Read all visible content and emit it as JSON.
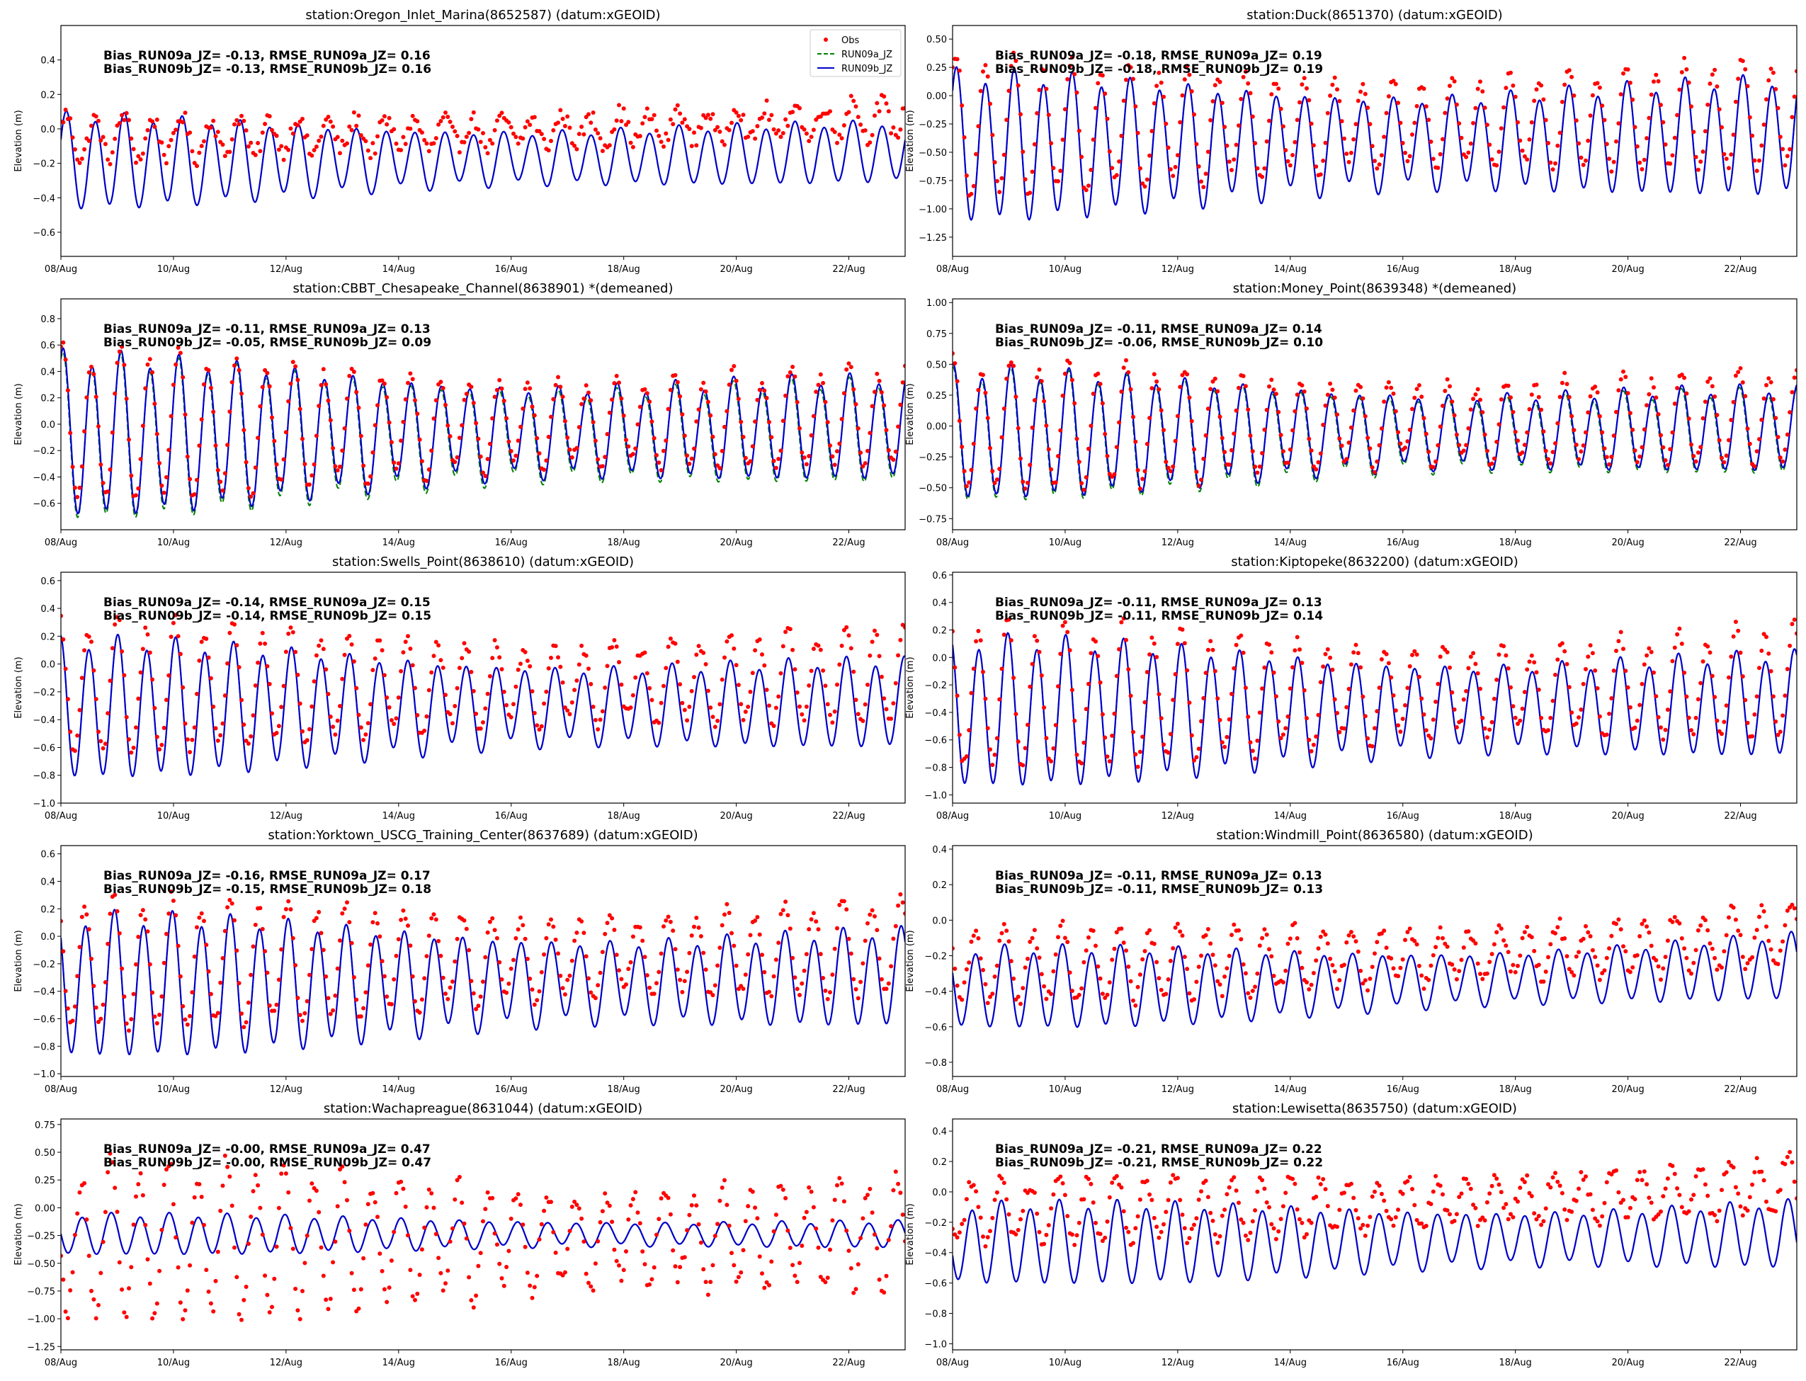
{
  "x_ticks": [
    "08/Aug",
    "10/Aug",
    "12/Aug",
    "14/Aug",
    "16/Aug",
    "18/Aug",
    "20/Aug",
    "22/Aug"
  ],
  "x_range_days": [
    0,
    15
  ],
  "y_label": "Elevation (m)",
  "legend": [
    {
      "key": "obs",
      "label": "Obs",
      "color": "#ff0000"
    },
    {
      "key": "run09a",
      "label": "RUN09a_JZ",
      "color": "#008000"
    },
    {
      "key": "run09b",
      "label": "RUN09b_JZ",
      "color": "#0000cc"
    }
  ],
  "chart_data": [
    {
      "type": "line",
      "title": "station:Oregon_Inlet_Marina(8652587) (datum:xGEOID)",
      "ylim": [
        -0.74,
        0.6
      ],
      "yticks": [
        -0.6,
        -0.4,
        -0.2,
        0.0,
        0.2,
        0.4
      ],
      "ytick_labels": [
        "−0.6",
        "−0.4",
        "−0.2",
        "0.0",
        "0.2",
        "0.4"
      ],
      "stats": [
        "Bias_RUN09a_JZ= -0.13, RMSE_RUN09a_JZ=  0.16",
        "Bias_RUN09b_JZ= -0.13, RMSE_RUN09b_JZ=  0.16"
      ],
      "model": {
        "mean": -0.19,
        "amp_start": 0.26,
        "amp_end": 0.16,
        "trend": 0.06,
        "offset_a": 0.0
      },
      "obs": {
        "mean": -0.05,
        "amp_start": 0.12,
        "amp_end": 0.1,
        "trend": 0.12,
        "noise": 0.05
      },
      "show_legend": true
    },
    {
      "type": "line",
      "title": "station:Duck(8651370) (datum:xGEOID)",
      "ylim": [
        -1.42,
        0.62
      ],
      "yticks": [
        -1.25,
        -1.0,
        -0.75,
        -0.5,
        -0.25,
        0.0,
        0.25,
        0.5
      ],
      "ytick_labels": [
        "−1.25",
        "−1.00",
        "−0.75",
        "−0.50",
        "−0.25",
        "0.00",
        "0.25",
        "0.50"
      ],
      "stats": [
        "Bias_RUN09a_JZ= -0.18, RMSE_RUN09a_JZ=  0.19",
        "Bias_RUN09b_JZ= -0.18, RMSE_RUN09b_JZ=  0.19"
      ],
      "model": {
        "mean": -0.45,
        "amp_start": 0.62,
        "amp_end": 0.48,
        "trend": 0.1,
        "offset_a": 0.0
      },
      "obs": {
        "mean": -0.28,
        "amp_start": 0.58,
        "amp_end": 0.44,
        "trend": 0.12,
        "noise": 0.04
      },
      "show_legend": false
    },
    {
      "type": "line",
      "title": "station:CBBT_Chesapeake_Channel(8638901) *(demeaned)",
      "ylim": [
        -0.8,
        0.95
      ],
      "yticks": [
        -0.6,
        -0.4,
        -0.2,
        0.0,
        0.2,
        0.4,
        0.6,
        0.8
      ],
      "ytick_labels": [
        "−0.6",
        "−0.4",
        "−0.2",
        "0.0",
        "0.2",
        "0.4",
        "0.6",
        "0.8"
      ],
      "stats": [
        "Bias_RUN09a_JZ= -0.11, RMSE_RUN09a_JZ=  0.13",
        "Bias_RUN09b_JZ= -0.05, RMSE_RUN09b_JZ=  0.09"
      ],
      "model": {
        "mean": -0.08,
        "amp_start": 0.58,
        "amp_end": 0.36,
        "trend": 0.06,
        "offset_a": -0.06
      },
      "obs": {
        "mean": -0.02,
        "amp_start": 0.55,
        "amp_end": 0.34,
        "trend": 0.08,
        "noise": 0.04
      },
      "show_legend": false
    },
    {
      "type": "line",
      "title": "station:Money_Point(8639348) *(demeaned)",
      "ylim": [
        -0.84,
        1.03
      ],
      "yticks": [
        -0.75,
        -0.5,
        -0.25,
        0.0,
        0.25,
        0.5,
        0.75,
        1.0
      ],
      "ytick_labels": [
        "−0.75",
        "−0.50",
        "−0.25",
        "0.00",
        "0.25",
        "0.50",
        "0.75",
        "1.00"
      ],
      "stats": [
        "Bias_RUN09a_JZ= -0.11, RMSE_RUN09a_JZ=  0.14",
        "Bias_RUN09b_JZ= -0.06, RMSE_RUN09b_JZ=  0.10"
      ],
      "model": {
        "mean": -0.06,
        "amp_start": 0.5,
        "amp_end": 0.32,
        "trend": 0.04,
        "offset_a": -0.05
      },
      "obs": {
        "mean": 0.0,
        "amp_start": 0.5,
        "amp_end": 0.36,
        "trend": 0.08,
        "noise": 0.04
      },
      "show_legend": false
    },
    {
      "type": "line",
      "title": "station:Swells_Point(8638610) (datum:xGEOID)",
      "ylim": [
        -1.0,
        0.66
      ],
      "yticks": [
        -1.0,
        -0.8,
        -0.6,
        -0.4,
        -0.2,
        0.0,
        0.2,
        0.4,
        0.6
      ],
      "ytick_labels": [
        "−1.0",
        "−0.8",
        "−0.6",
        "−0.4",
        "−0.2",
        "0.0",
        "0.2",
        "0.4",
        "0.6"
      ],
      "stats": [
        "Bias_RUN09a_JZ= -0.14, RMSE_RUN09a_JZ=  0.15",
        "Bias_RUN09b_JZ= -0.14, RMSE_RUN09b_JZ=  0.15"
      ],
      "model": {
        "mean": -0.32,
        "amp_start": 0.48,
        "amp_end": 0.3,
        "trend": 0.04,
        "offset_a": 0.0
      },
      "obs": {
        "mean": -0.17,
        "amp_start": 0.46,
        "amp_end": 0.32,
        "trend": 0.1,
        "noise": 0.04
      },
      "show_legend": false
    },
    {
      "type": "line",
      "title": "station:Kiptopeke(8632200) (datum:xGEOID)",
      "ylim": [
        -1.06,
        0.62
      ],
      "yticks": [
        -1.0,
        -0.8,
        -0.6,
        -0.4,
        -0.2,
        0.0,
        0.2,
        0.4,
        0.6
      ],
      "ytick_labels": [
        "−1.0",
        "−0.8",
        "−0.6",
        "−0.4",
        "−0.2",
        "0.0",
        "0.2",
        "0.4",
        "0.6"
      ],
      "stats": [
        "Bias_RUN09a_JZ= -0.11, RMSE_RUN09a_JZ=  0.13",
        "Bias_RUN09b_JZ= -0.11, RMSE_RUN09b_JZ=  0.14"
      ],
      "model": {
        "mean": -0.4,
        "amp_start": 0.52,
        "amp_end": 0.36,
        "trend": 0.06,
        "offset_a": 0.0
      },
      "obs": {
        "mean": -0.28,
        "amp_start": 0.5,
        "amp_end": 0.38,
        "trend": 0.1,
        "noise": 0.04
      },
      "show_legend": false
    },
    {
      "type": "line",
      "title": "station:Yorktown_USCG_Training_Center(8637689) (datum:xGEOID)",
      "ylim": [
        -1.02,
        0.66
      ],
      "yticks": [
        -1.0,
        -0.8,
        -0.6,
        -0.4,
        -0.2,
        0.0,
        0.2,
        0.4,
        0.6
      ],
      "ytick_labels": [
        "−1.0",
        "−0.8",
        "−0.6",
        "−0.4",
        "−0.2",
        "0.0",
        "0.2",
        "0.4",
        "0.6"
      ],
      "stats": [
        "Bias_RUN09a_JZ= -0.16, RMSE_RUN09a_JZ=  0.17",
        "Bias_RUN09b_JZ= -0.15, RMSE_RUN09b_JZ=  0.18"
      ],
      "model": {
        "mean": -0.36,
        "amp_start": 0.5,
        "amp_end": 0.34,
        "trend": 0.06,
        "offset_a": 0.0
      },
      "obs": {
        "mean": -0.2,
        "amp_start": 0.46,
        "amp_end": 0.34,
        "trend": 0.12,
        "noise": 0.04
      },
      "show_legend": false
    },
    {
      "type": "line",
      "title": "station:Windmill_Point(8636580) (datum:xGEOID)",
      "ylim": [
        -0.88,
        0.42
      ],
      "yticks": [
        -0.8,
        -0.6,
        -0.4,
        -0.2,
        0.0,
        0.2,
        0.4
      ],
      "ytick_labels": [
        "−0.8",
        "−0.6",
        "−0.4",
        "−0.2",
        "0.0",
        "0.2",
        "0.4"
      ],
      "stats": [
        "Bias_RUN09a_JZ= -0.11, RMSE_RUN09a_JZ=  0.13",
        "Bias_RUN09b_JZ= -0.11, RMSE_RUN09b_JZ=  0.13"
      ],
      "model": {
        "mean": -0.38,
        "amp_start": 0.22,
        "amp_end": 0.18,
        "trend": 0.12,
        "offset_a": 0.0
      },
      "obs": {
        "mean": -0.25,
        "amp_start": 0.2,
        "amp_end": 0.18,
        "trend": 0.16,
        "noise": 0.04
      },
      "show_legend": false
    },
    {
      "type": "line",
      "title": "station:Wachapreague(8631044) (datum:xGEOID)",
      "ylim": [
        -1.28,
        0.8
      ],
      "yticks": [
        -1.25,
        -1.0,
        -0.75,
        -0.5,
        -0.25,
        0.0,
        0.25,
        0.5,
        0.75
      ],
      "ytick_labels": [
        "−1.25",
        "−1.00",
        "−0.75",
        "−0.50",
        "−0.25",
        "0.00",
        "0.25",
        "0.50",
        "0.75"
      ],
      "stats": [
        "Bias_RUN09a_JZ= -0.00, RMSE_RUN09a_JZ=  0.47",
        "Bias_RUN09b_JZ= -0.00, RMSE_RUN09b_JZ=  0.47"
      ],
      "model": {
        "mean": -0.24,
        "amp_start": 0.18,
        "amp_end": 0.12,
        "trend": 0.0,
        "offset_a": 0.0
      },
      "obs": {
        "mean": -0.3,
        "amp_start": 0.68,
        "amp_end": 0.5,
        "trend": 0.06,
        "noise": 0.08
      },
      "show_legend": false
    },
    {
      "type": "line",
      "title": "station:Lewisetta(8635750) (datum:xGEOID)",
      "ylim": [
        -1.04,
        0.48
      ],
      "yticks": [
        -1.0,
        -0.8,
        -0.6,
        -0.4,
        -0.2,
        0.0,
        0.2,
        0.4
      ],
      "ytick_labels": [
        "−1.0",
        "−0.8",
        "−0.6",
        "−0.4",
        "−0.2",
        "0.0",
        "0.2",
        "0.4"
      ],
      "stats": [
        "Bias_RUN09a_JZ= -0.21, RMSE_RUN09a_JZ=  0.22",
        "Bias_RUN09b_JZ= -0.21, RMSE_RUN09b_JZ=  0.22"
      ],
      "model": {
        "mean": -0.34,
        "amp_start": 0.26,
        "amp_end": 0.22,
        "trend": 0.06,
        "offset_a": 0.0
      },
      "obs": {
        "mean": -0.12,
        "amp_start": 0.2,
        "amp_end": 0.2,
        "trend": 0.16,
        "noise": 0.05
      },
      "show_legend": false
    }
  ]
}
